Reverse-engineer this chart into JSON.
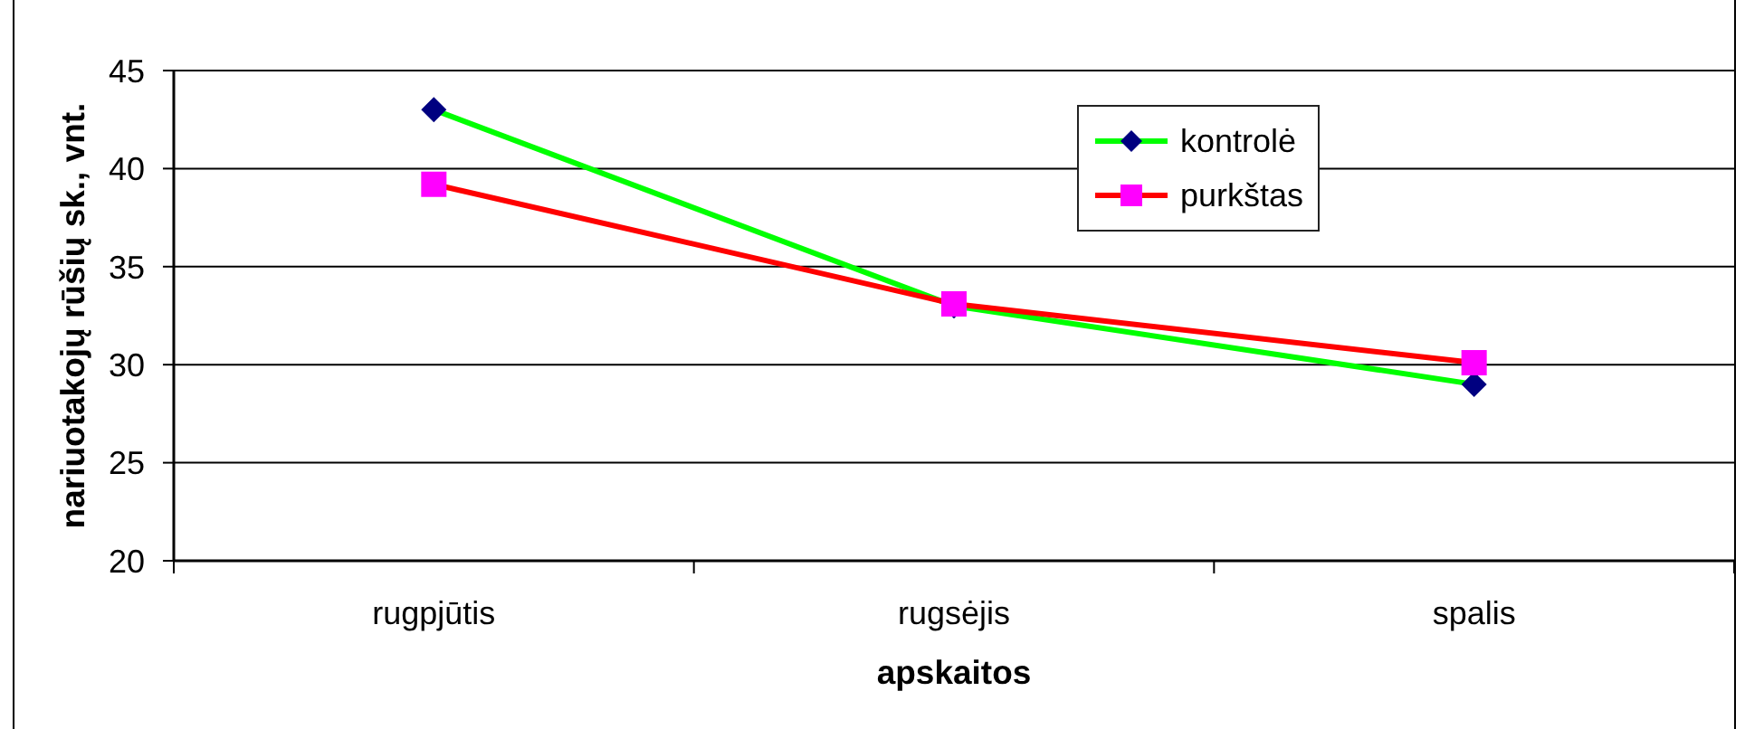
{
  "chart_data": {
    "type": "line",
    "xlabel": "apskaitos",
    "ylabel": "nariuotakojų rūšių sk., vnt.",
    "categories": [
      "rugpjūtis",
      "rugsėjis",
      "spalis"
    ],
    "series": [
      {
        "name": "kontrolė",
        "color": "#00ff00",
        "colors": [
          "#000080",
          "#000080",
          "#000080"
        ],
        "marker": "diamond",
        "values": [
          43,
          33,
          29
        ]
      },
      {
        "name": "purkštas",
        "color": "#ff0000",
        "colors": [
          "#ff00ff",
          "#ff00ff",
          "#ff00ff"
        ],
        "marker": "square",
        "values": [
          39.2,
          33.1,
          30.1
        ]
      }
    ],
    "ylim": [
      20,
      45
    ],
    "yticks": [
      20,
      25,
      30,
      35,
      40,
      45
    ],
    "grid": "y",
    "legend": "top right",
    "line_style": "solid"
  }
}
